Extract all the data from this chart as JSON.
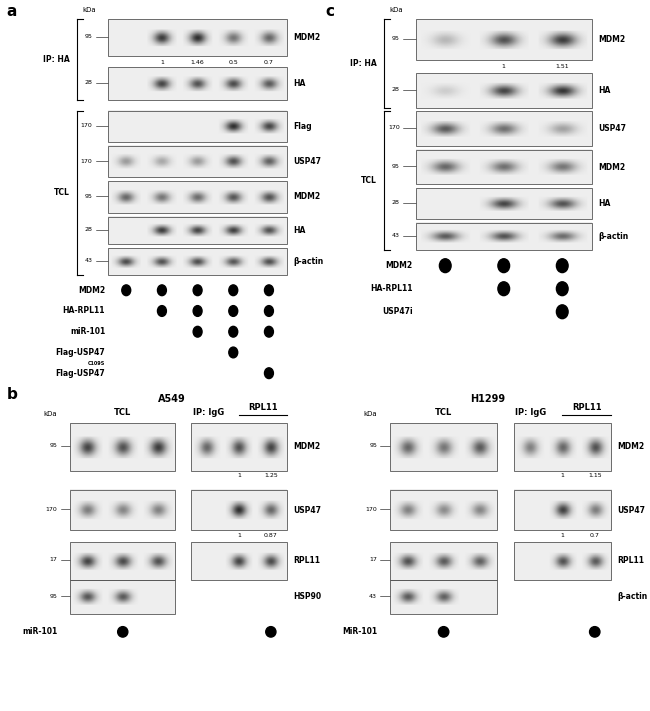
{
  "panel_a": {
    "title": "a",
    "ip_label": "IP: HA",
    "tcl_label": "TCL",
    "kda_label": "kDa",
    "blots": [
      {
        "kda": "95",
        "label": "MDM2",
        "group": "ip",
        "values_text": [
          "1",
          "1.46",
          "0.5",
          "0.7"
        ],
        "bands": [
          0,
          0.82,
          0.88,
          0.55,
          0.62
        ]
      },
      {
        "kda": "28",
        "label": "HA",
        "group": "ip",
        "values_text": [],
        "bands": [
          0,
          0.78,
          0.72,
          0.75,
          0.68
        ]
      },
      {
        "kda": "170",
        "label": "Flag",
        "group": "tcl",
        "values_text": [],
        "bands": [
          0,
          0,
          0,
          0.88,
          0.78
        ]
      },
      {
        "kda": "170",
        "label": "USP47",
        "group": "tcl",
        "values_text": [],
        "bands": [
          0.38,
          0.32,
          0.38,
          0.72,
          0.65
        ]
      },
      {
        "kda": "95",
        "label": "MDM2",
        "group": "tcl",
        "values_text": [],
        "bands": [
          0.62,
          0.55,
          0.6,
          0.7,
          0.72
        ]
      },
      {
        "kda": "28",
        "label": "HA",
        "group": "tcl",
        "values_text": [],
        "bands": [
          0,
          0.82,
          0.78,
          0.8,
          0.72
        ]
      },
      {
        "kda": "43",
        "label": "β-actin",
        "group": "tcl",
        "values_text": [],
        "bands": [
          0.75,
          0.72,
          0.74,
          0.7,
          0.73
        ]
      }
    ],
    "dot_rows": [
      {
        "label": "MDM2",
        "dots": [
          1,
          1,
          1,
          1,
          1
        ]
      },
      {
        "label": "HA-RPL11",
        "dots": [
          0,
          1,
          1,
          1,
          1
        ]
      },
      {
        "label": "miR-101",
        "dots": [
          0,
          0,
          1,
          1,
          1
        ]
      },
      {
        "label": "Flag-USP47",
        "dots": [
          0,
          0,
          0,
          1,
          0
        ]
      },
      {
        "label": "Flag-USP47C109S",
        "dots": [
          0,
          0,
          0,
          0,
          1
        ]
      }
    ],
    "n_lanes": 5
  },
  "panel_b": {
    "title": "b",
    "cell_line": "A549",
    "kda_label": "kDa",
    "blots": [
      {
        "kda": "95",
        "label": "MDM2",
        "values_text": [
          "1",
          "1.25"
        ],
        "tcl_bands": [
          0.78,
          0.72,
          0.82
        ],
        "ip_bands": [
          0.62,
          0.72,
          0.78
        ]
      },
      {
        "kda": "170",
        "label": "USP47",
        "values_text": [
          "1",
          "0.87"
        ],
        "tcl_bands": [
          0.52,
          0.48,
          0.5
        ],
        "ip_bands": [
          0,
          0.88,
          0.62
        ]
      },
      {
        "kda": "17",
        "label": "RPL11",
        "values_text": [],
        "tcl_bands": [
          0.78,
          0.75,
          0.72
        ],
        "ip_bands": [
          0,
          0.78,
          0.75
        ]
      },
      {
        "kda": "95",
        "label": "HSP90",
        "values_text": [],
        "tcl_bands": [
          0.7,
          0.68,
          0
        ],
        "ip_bands": []
      }
    ],
    "dot_rows": [
      {
        "label": "miR-101",
        "dots": [
          0,
          1,
          0,
          1
        ]
      }
    ]
  },
  "panel_c": {
    "title": "c",
    "ip_label": "IP: HA",
    "tcl_label": "TCL",
    "kda_label": "kDa",
    "blots": [
      {
        "kda": "95",
        "label": "MDM2",
        "group": "ip",
        "values_text": [
          "1",
          "1.51"
        ],
        "bands": [
          0.25,
          0.72,
          0.82
        ]
      },
      {
        "kda": "28",
        "label": "HA",
        "group": "ip",
        "values_text": [],
        "bands": [
          0.15,
          0.78,
          0.85
        ]
      },
      {
        "kda": "170",
        "label": "USP47",
        "group": "tcl",
        "values_text": [],
        "bands": [
          0.68,
          0.58,
          0.35
        ]
      },
      {
        "kda": "95",
        "label": "MDM2",
        "group": "tcl",
        "values_text": [],
        "bands": [
          0.62,
          0.58,
          0.55
        ]
      },
      {
        "kda": "28",
        "label": "HA",
        "group": "tcl",
        "values_text": [],
        "bands": [
          0,
          0.78,
          0.72
        ]
      },
      {
        "kda": "43",
        "label": "β-actin",
        "group": "tcl",
        "values_text": [],
        "bands": [
          0.68,
          0.72,
          0.6
        ]
      }
    ],
    "dot_rows": [
      {
        "label": "MDM2",
        "dots": [
          1,
          1,
          1
        ]
      },
      {
        "label": "HA-RPL11",
        "dots": [
          0,
          1,
          1
        ]
      },
      {
        "label": "USP47i",
        "dots": [
          0,
          0,
          1
        ]
      }
    ],
    "n_lanes": 3
  },
  "panel_d": {
    "title": "H1299",
    "kda_label": "kDa",
    "blots": [
      {
        "kda": "95",
        "label": "MDM2",
        "values_text": [
          "1",
          "1.15"
        ],
        "tcl_bands": [
          0.62,
          0.55,
          0.68
        ],
        "ip_bands": [
          0.5,
          0.62,
          0.72
        ]
      },
      {
        "kda": "170",
        "label": "USP47",
        "values_text": [
          "1",
          "0.7"
        ],
        "tcl_bands": [
          0.5,
          0.45,
          0.48
        ],
        "ip_bands": [
          0,
          0.8,
          0.52
        ]
      },
      {
        "kda": "17",
        "label": "RPL11",
        "values_text": [],
        "tcl_bands": [
          0.72,
          0.68,
          0.65
        ],
        "ip_bands": [
          0,
          0.72,
          0.68
        ]
      },
      {
        "kda": "43",
        "label": "β-actin",
        "values_text": [],
        "tcl_bands": [
          0.68,
          0.65,
          0
        ],
        "ip_bands": []
      }
    ],
    "dot_rows": [
      {
        "label": "MiR-101",
        "dots": [
          0,
          1,
          0,
          1
        ]
      }
    ]
  }
}
